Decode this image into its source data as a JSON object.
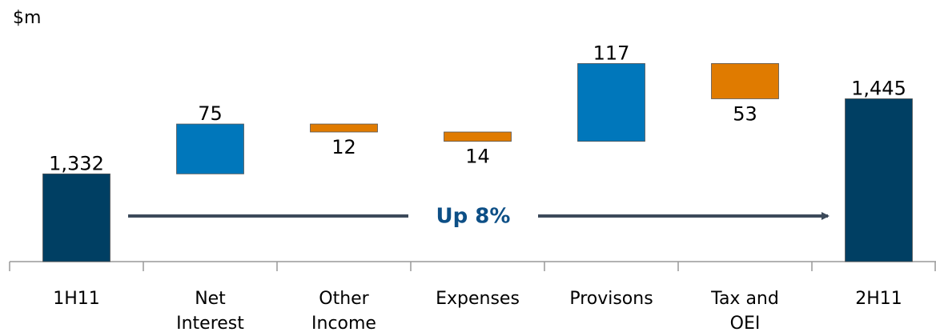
{
  "chart_data": {
    "type": "waterfall",
    "unit_label": "$m",
    "annotation": "Up 8%",
    "categories": [
      "1H11",
      "Net\nInterest",
      "Other\nIncome",
      "Expenses",
      "Provisons",
      "Tax and\nOEI",
      "2H11"
    ],
    "values": [
      1332,
      75,
      -12,
      -14,
      117,
      -53,
      1445
    ],
    "value_labels": [
      "1,332",
      "75",
      "12",
      "14",
      "117",
      "53",
      "1,445"
    ],
    "total_color": "#003f63",
    "increase_color": "#0077bb",
    "decrease_color": "#e07b00",
    "ylim": [
      1200,
      1590
    ]
  }
}
